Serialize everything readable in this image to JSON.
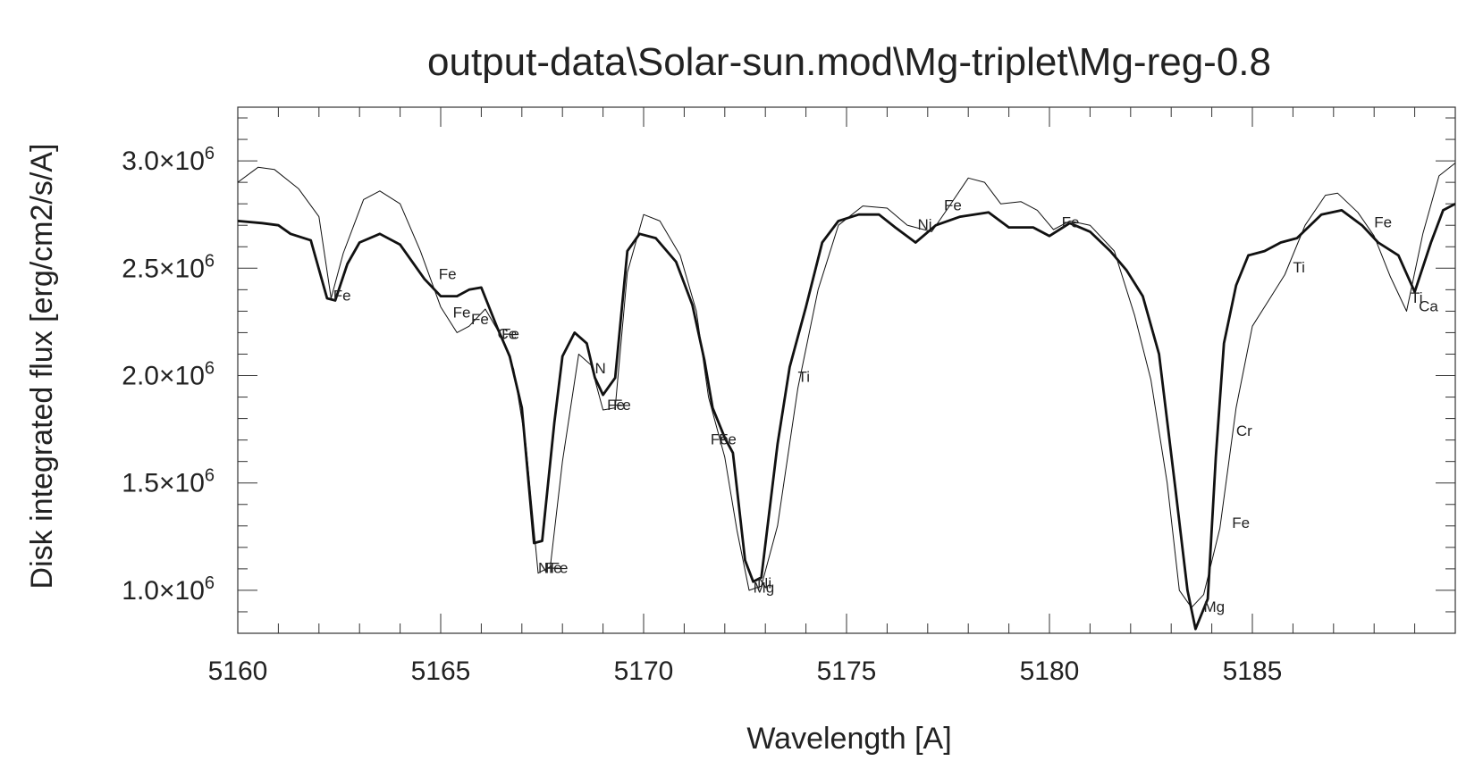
{
  "chart_data": {
    "type": "line",
    "title": "output-data\\Solar-sun.mod\\Mg-triplet\\Mg-reg-0.8",
    "xlabel": "Wavelength [A]",
    "ylabel": "Disk integrated flux [erg/cm2/s/A]",
    "xlim": [
      5160,
      5190
    ],
    "ylim": [
      800000,
      3250000
    ],
    "grid": false,
    "x_ticks": [
      {
        "value": 5160,
        "label": "5160"
      },
      {
        "value": 5165,
        "label": "5165"
      },
      {
        "value": 5170,
        "label": "5170"
      },
      {
        "value": 5175,
        "label": "5175"
      },
      {
        "value": 5180,
        "label": "5180"
      },
      {
        "value": 5185,
        "label": "5185"
      }
    ],
    "y_ticks": [
      {
        "value": 1000000,
        "mantissa": "1.0×10",
        "exp": "6"
      },
      {
        "value": 1500000,
        "mantissa": "1.5×10",
        "exp": "6"
      },
      {
        "value": 2000000,
        "mantissa": "2.0×10",
        "exp": "6"
      },
      {
        "value": 2500000,
        "mantissa": "2.5×10",
        "exp": "6"
      },
      {
        "value": 3000000,
        "mantissa": "3.0×10",
        "exp": "6"
      }
    ],
    "series": [
      {
        "style": "thick",
        "points": [
          [
            5160.0,
            2720000
          ],
          [
            5160.6,
            2710000
          ],
          [
            5161.0,
            2700000
          ],
          [
            5161.3,
            2660000
          ],
          [
            5161.8,
            2630000
          ],
          [
            5162.2,
            2360000
          ],
          [
            5162.4,
            2350000
          ],
          [
            5162.7,
            2520000
          ],
          [
            5163.0,
            2620000
          ],
          [
            5163.5,
            2660000
          ],
          [
            5164.0,
            2610000
          ],
          [
            5164.6,
            2450000
          ],
          [
            5165.0,
            2370000
          ],
          [
            5165.4,
            2370000
          ],
          [
            5165.7,
            2400000
          ],
          [
            5166.0,
            2410000
          ],
          [
            5166.4,
            2220000
          ],
          [
            5166.7,
            2090000
          ],
          [
            5167.0,
            1850000
          ],
          [
            5167.3,
            1220000
          ],
          [
            5167.5,
            1230000
          ],
          [
            5167.8,
            1780000
          ],
          [
            5168.0,
            2090000
          ],
          [
            5168.3,
            2200000
          ],
          [
            5168.6,
            2150000
          ],
          [
            5168.8,
            1990000
          ],
          [
            5169.0,
            1910000
          ],
          [
            5169.3,
            1990000
          ],
          [
            5169.6,
            2580000
          ],
          [
            5169.9,
            2660000
          ],
          [
            5170.3,
            2640000
          ],
          [
            5170.8,
            2530000
          ],
          [
            5171.2,
            2330000
          ],
          [
            5171.5,
            2070000
          ],
          [
            5171.7,
            1850000
          ],
          [
            5172.0,
            1710000
          ],
          [
            5172.2,
            1640000
          ],
          [
            5172.5,
            1140000
          ],
          [
            5172.7,
            1040000
          ],
          [
            5172.9,
            1060000
          ],
          [
            5173.3,
            1680000
          ],
          [
            5173.6,
            2040000
          ],
          [
            5174.0,
            2320000
          ],
          [
            5174.4,
            2620000
          ],
          [
            5174.8,
            2720000
          ],
          [
            5175.3,
            2750000
          ],
          [
            5175.8,
            2750000
          ],
          [
            5176.2,
            2690000
          ],
          [
            5176.7,
            2620000
          ],
          [
            5177.2,
            2700000
          ],
          [
            5177.8,
            2740000
          ],
          [
            5178.5,
            2760000
          ],
          [
            5179.0,
            2690000
          ],
          [
            5179.6,
            2690000
          ],
          [
            5180.0,
            2650000
          ],
          [
            5180.5,
            2710000
          ],
          [
            5181.0,
            2670000
          ],
          [
            5181.5,
            2580000
          ],
          [
            5181.9,
            2490000
          ],
          [
            5182.3,
            2370000
          ],
          [
            5182.7,
            2100000
          ],
          [
            5183.1,
            1480000
          ],
          [
            5183.4,
            1000000
          ],
          [
            5183.6,
            820000
          ],
          [
            5183.9,
            960000
          ],
          [
            5184.1,
            1620000
          ],
          [
            5184.3,
            2150000
          ],
          [
            5184.6,
            2420000
          ],
          [
            5184.9,
            2560000
          ],
          [
            5185.3,
            2580000
          ],
          [
            5185.7,
            2620000
          ],
          [
            5186.1,
            2640000
          ],
          [
            5186.7,
            2750000
          ],
          [
            5187.2,
            2770000
          ],
          [
            5187.7,
            2700000
          ],
          [
            5188.1,
            2620000
          ],
          [
            5188.6,
            2560000
          ],
          [
            5189.0,
            2390000
          ],
          [
            5189.4,
            2620000
          ],
          [
            5189.7,
            2770000
          ],
          [
            5190.0,
            2800000
          ]
        ]
      },
      {
        "style": "thin",
        "points": [
          [
            5160.0,
            2900000
          ],
          [
            5160.5,
            2970000
          ],
          [
            5160.9,
            2960000
          ],
          [
            5161.5,
            2870000
          ],
          [
            5162.0,
            2740000
          ],
          [
            5162.3,
            2360000
          ],
          [
            5162.6,
            2570000
          ],
          [
            5163.1,
            2820000
          ],
          [
            5163.5,
            2860000
          ],
          [
            5164.0,
            2800000
          ],
          [
            5164.5,
            2580000
          ],
          [
            5165.0,
            2320000
          ],
          [
            5165.4,
            2200000
          ],
          [
            5165.7,
            2230000
          ],
          [
            5166.1,
            2310000
          ],
          [
            5166.5,
            2180000
          ],
          [
            5166.8,
            2030000
          ],
          [
            5167.1,
            1680000
          ],
          [
            5167.4,
            1080000
          ],
          [
            5167.7,
            1110000
          ],
          [
            5168.0,
            1600000
          ],
          [
            5168.4,
            2100000
          ],
          [
            5168.7,
            2050000
          ],
          [
            5169.0,
            1840000
          ],
          [
            5169.3,
            1850000
          ],
          [
            5169.6,
            2480000
          ],
          [
            5170.0,
            2750000
          ],
          [
            5170.4,
            2720000
          ],
          [
            5170.9,
            2560000
          ],
          [
            5171.3,
            2300000
          ],
          [
            5171.6,
            1900000
          ],
          [
            5172.0,
            1620000
          ],
          [
            5172.3,
            1280000
          ],
          [
            5172.6,
            1000000
          ],
          [
            5172.9,
            1020000
          ],
          [
            5173.3,
            1300000
          ],
          [
            5173.8,
            1940000
          ],
          [
            5174.3,
            2400000
          ],
          [
            5174.8,
            2700000
          ],
          [
            5175.4,
            2790000
          ],
          [
            5176.0,
            2780000
          ],
          [
            5176.5,
            2700000
          ],
          [
            5177.1,
            2670000
          ],
          [
            5177.5,
            2780000
          ],
          [
            5178.0,
            2920000
          ],
          [
            5178.4,
            2900000
          ],
          [
            5178.8,
            2800000
          ],
          [
            5179.3,
            2810000
          ],
          [
            5179.7,
            2770000
          ],
          [
            5180.1,
            2680000
          ],
          [
            5180.5,
            2720000
          ],
          [
            5181.0,
            2700000
          ],
          [
            5181.6,
            2580000
          ],
          [
            5182.1,
            2280000
          ],
          [
            5182.5,
            1980000
          ],
          [
            5182.9,
            1500000
          ],
          [
            5183.2,
            1000000
          ],
          [
            5183.5,
            920000
          ],
          [
            5183.8,
            980000
          ],
          [
            5184.2,
            1290000
          ],
          [
            5184.6,
            1850000
          ],
          [
            5185.0,
            2230000
          ],
          [
            5185.4,
            2350000
          ],
          [
            5185.8,
            2470000
          ],
          [
            5186.3,
            2700000
          ],
          [
            5186.8,
            2840000
          ],
          [
            5187.1,
            2850000
          ],
          [
            5187.6,
            2760000
          ],
          [
            5188.0,
            2650000
          ],
          [
            5188.4,
            2460000
          ],
          [
            5188.8,
            2300000
          ],
          [
            5189.2,
            2660000
          ],
          [
            5189.6,
            2930000
          ],
          [
            5190.0,
            2990000
          ]
        ]
      }
    ],
    "annotations": [
      {
        "text": "Fe",
        "x": 5162.35,
        "y": 2350000
      },
      {
        "text": "Fe",
        "x": 5164.95,
        "y": 2450000
      },
      {
        "text": "Fe",
        "x": 5165.3,
        "y": 2270000
      },
      {
        "text": "Fe",
        "x": 5165.75,
        "y": 2240000
      },
      {
        "text": "Ce",
        "x": 5166.4,
        "y": 2170000
      },
      {
        "text": "Fe",
        "x": 5166.5,
        "y": 2170000
      },
      {
        "text": "Ni",
        "x": 5167.4,
        "y": 1080000
      },
      {
        "text": "Fe",
        "x": 5167.55,
        "y": 1080000
      },
      {
        "text": "Fe",
        "x": 5167.7,
        "y": 1080000
      },
      {
        "text": "N",
        "x": 5168.8,
        "y": 2010000
      },
      {
        "text": "Fe",
        "x": 5169.1,
        "y": 1840000
      },
      {
        "text": "Fe",
        "x": 5169.25,
        "y": 1840000
      },
      {
        "text": "Fe",
        "x": 5171.65,
        "y": 1680000
      },
      {
        "text": "Fe",
        "x": 5171.85,
        "y": 1680000
      },
      {
        "text": "Mg",
        "x": 5172.7,
        "y": 990000
      },
      {
        "text": "Ni",
        "x": 5172.8,
        "y": 1010000
      },
      {
        "text": "Ti",
        "x": 5173.8,
        "y": 1970000
      },
      {
        "text": "Ni",
        "x": 5176.75,
        "y": 2680000
      },
      {
        "text": "Fe",
        "x": 5177.4,
        "y": 2770000
      },
      {
        "text": "Fe",
        "x": 5180.3,
        "y": 2690000
      },
      {
        "text": "Mg",
        "x": 5183.8,
        "y": 900000
      },
      {
        "text": "Fe",
        "x": 5184.5,
        "y": 1290000
      },
      {
        "text": "Cr",
        "x": 5184.6,
        "y": 1720000
      },
      {
        "text": "Ti",
        "x": 5186.0,
        "y": 2480000
      },
      {
        "text": "Fe",
        "x": 5188.0,
        "y": 2690000
      },
      {
        "text": "Ti",
        "x": 5188.9,
        "y": 2340000
      },
      {
        "text": "Ca",
        "x": 5189.1,
        "y": 2300000
      }
    ]
  }
}
